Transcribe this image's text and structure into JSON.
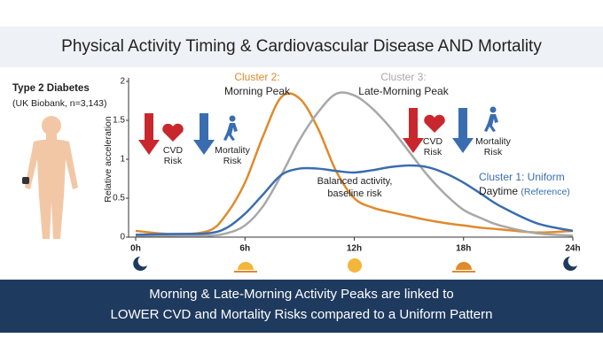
{
  "chart_data": {
    "type": "line",
    "title": "Physical Activity Timing & Cardiovascular Disease AND Mortality",
    "cohort": [
      "Type 2 Diabetes",
      "(UK Biobank, n=3,143)"
    ],
    "ylabel": "Relative acceleration",
    "x": [
      0,
      2,
      4,
      5,
      6,
      7,
      8,
      9,
      10,
      11,
      12,
      13,
      14,
      15,
      16,
      17,
      18,
      19,
      20,
      22,
      24
    ],
    "series": [
      {
        "name": "Cluster 2:",
        "subtitle": "Morning Peak",
        "color": "#e08a2c",
        "values": [
          0.08,
          0.04,
          0.08,
          0.3,
          0.7,
          1.3,
          1.8,
          1.78,
          1.4,
          0.85,
          0.5,
          0.38,
          0.32,
          0.27,
          0.22,
          0.18,
          0.15,
          0.12,
          0.1,
          0.06,
          0.08
        ]
      },
      {
        "name": "Cluster 3:",
        "subtitle": "Late-Morning Peak",
        "color": "#a8a8a8",
        "values": [
          0.02,
          0.02,
          0.02,
          0.05,
          0.15,
          0.4,
          0.8,
          1.25,
          1.6,
          1.84,
          1.82,
          1.65,
          1.4,
          1.1,
          0.8,
          0.55,
          0.35,
          0.24,
          0.15,
          0.05,
          0.02
        ]
      },
      {
        "name": "Cluster 1: Uniform",
        "subtitle": "Daytime",
        "note": "(Reference)",
        "color": "#3a6db0",
        "values": [
          0.03,
          0.04,
          0.05,
          0.12,
          0.3,
          0.55,
          0.8,
          0.88,
          0.88,
          0.85,
          0.83,
          0.86,
          0.9,
          0.92,
          0.9,
          0.82,
          0.7,
          0.55,
          0.4,
          0.18,
          0.08
        ]
      }
    ],
    "xlim": [
      0,
      24
    ],
    "ylim": [
      0,
      2
    ],
    "xticks": [
      {
        "value": 0,
        "label": "0h"
      },
      {
        "value": 6,
        "label": "6h"
      },
      {
        "value": 12,
        "label": "12h"
      },
      {
        "value": 18,
        "label": "18h"
      },
      {
        "value": 24,
        "label": "24h"
      }
    ],
    "yticks": [
      0,
      0.5,
      1,
      1.5,
      2
    ],
    "risk_labels": [
      [
        "CVD",
        "Risk"
      ],
      [
        "Mortality",
        "Risk"
      ],
      [
        "CVD",
        "Risk"
      ],
      [
        "Mortality",
        "Risk"
      ]
    ],
    "annotation": [
      "Balanced activity,",
      "baseline risk"
    ],
    "footer": [
      "Morning & Late-Morning Activity Peaks are linked to",
      "LOWER CVD and Mortality Risks compared to a Uniform Pattern"
    ]
  }
}
